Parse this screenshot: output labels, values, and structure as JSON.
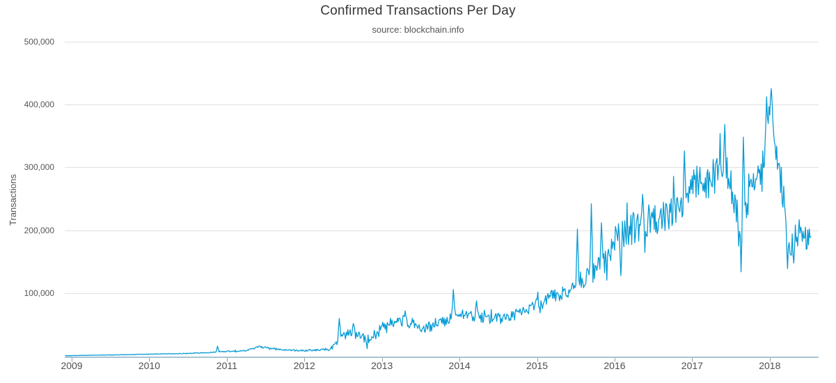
{
  "chart_data": {
    "type": "line",
    "title": "Confirmed Transactions Per Day",
    "subtitle": "source: blockchain.info",
    "ylabel": "Transactions",
    "xlabel": "",
    "series_name": "confirmed-transactions-per-day",
    "legend": "none",
    "grid": "horizontal-only",
    "background_color": "#ffffff",
    "line_color": "#069bd5",
    "grid_color": "#e0e0e0",
    "axis_line_color": "#a8c3d3",
    "tick_mark_color": "#8fa3af",
    "label_color": "#555555",
    "title_color": "#363636",
    "xlim": [
      2008.91,
      2018.63
    ],
    "ylim": [
      0,
      500000
    ],
    "x_start": 2009.0,
    "x_end": 2018.53,
    "x_ticks": [
      {
        "value": 2009,
        "label": "2009"
      },
      {
        "value": 2010,
        "label": "2010"
      },
      {
        "value": 2011,
        "label": "2011"
      },
      {
        "value": 2012,
        "label": "2012"
      },
      {
        "value": 2013,
        "label": "2013"
      },
      {
        "value": 2014,
        "label": "2014"
      },
      {
        "value": 2015,
        "label": "2015"
      },
      {
        "value": 2016,
        "label": "2016"
      },
      {
        "value": 2017,
        "label": "2017"
      },
      {
        "value": 2018,
        "label": "2018"
      }
    ],
    "y_ticks": [
      {
        "value": 100000,
        "label": "100,000"
      },
      {
        "value": 200000,
        "label": "200,000"
      },
      {
        "value": 300000,
        "label": "300,000"
      },
      {
        "value": 400000,
        "label": "400,000"
      },
      {
        "value": 500000,
        "label": "500,000"
      }
    ],
    "baseline": [
      [
        2009.0,
        1000
      ],
      [
        2009.4,
        1800
      ],
      [
        2009.8,
        2600
      ],
      [
        2010.0,
        3200
      ],
      [
        2010.4,
        4200
      ],
      [
        2010.75,
        5500
      ],
      [
        2011.0,
        7500
      ],
      [
        2011.25,
        8800
      ],
      [
        2011.42,
        15000
      ],
      [
        2011.52,
        13000
      ],
      [
        2011.7,
        10200
      ],
      [
        2011.9,
        9000
      ],
      [
        2012.1,
        9500
      ],
      [
        2012.3,
        10500
      ],
      [
        2012.36,
        14000
      ],
      [
        2012.44,
        30000
      ],
      [
        2012.55,
        35000
      ],
      [
        2012.65,
        37000
      ],
      [
        2012.75,
        30000
      ],
      [
        2012.82,
        27000
      ],
      [
        2012.92,
        34000
      ],
      [
        2013.0,
        45000
      ],
      [
        2013.1,
        54000
      ],
      [
        2013.25,
        58000
      ],
      [
        2013.4,
        52000
      ],
      [
        2013.5,
        42000
      ],
      [
        2013.6,
        46000
      ],
      [
        2013.72,
        52000
      ],
      [
        2013.85,
        58000
      ],
      [
        2013.95,
        68000
      ],
      [
        2014.05,
        66000
      ],
      [
        2014.2,
        63000
      ],
      [
        2014.4,
        60000
      ],
      [
        2014.6,
        63000
      ],
      [
        2014.75,
        67000
      ],
      [
        2014.9,
        76000
      ],
      [
        2015.0,
        86000
      ],
      [
        2015.15,
        93000
      ],
      [
        2015.3,
        98000
      ],
      [
        2015.45,
        110000
      ],
      [
        2015.6,
        122000
      ],
      [
        2015.75,
        135000
      ],
      [
        2015.9,
        150000
      ],
      [
        2016.0,
        190000
      ],
      [
        2016.15,
        200000
      ],
      [
        2016.3,
        205000
      ],
      [
        2016.45,
        215000
      ],
      [
        2016.6,
        222000
      ],
      [
        2016.75,
        232000
      ],
      [
        2016.9,
        255000
      ],
      [
        2017.0,
        265000
      ],
      [
        2017.15,
        278000
      ],
      [
        2017.3,
        292000
      ],
      [
        2017.4,
        318000
      ],
      [
        2017.48,
        290000
      ],
      [
        2017.56,
        245000
      ],
      [
        2017.64,
        228000
      ],
      [
        2017.72,
        245000
      ],
      [
        2017.82,
        272000
      ],
      [
        2017.9,
        300000
      ],
      [
        2017.95,
        340000
      ],
      [
        2018.0,
        398000
      ],
      [
        2018.04,
        390000
      ],
      [
        2018.08,
        330000
      ],
      [
        2018.13,
        290000
      ],
      [
        2018.18,
        245000
      ],
      [
        2018.24,
        195000
      ],
      [
        2018.3,
        180000
      ],
      [
        2018.36,
        195000
      ],
      [
        2018.42,
        200000
      ],
      [
        2018.48,
        190000
      ],
      [
        2018.53,
        195000
      ]
    ],
    "spikes": [
      [
        2010.88,
        16000
      ],
      [
        2012.45,
        60000
      ],
      [
        2012.63,
        52000
      ],
      [
        2013.3,
        72000
      ],
      [
        2013.92,
        106000
      ],
      [
        2014.22,
        88000
      ],
      [
        2015.52,
        202000
      ],
      [
        2015.7,
        242000
      ],
      [
        2015.83,
        212000
      ],
      [
        2016.08,
        128000
      ],
      [
        2016.36,
        257000
      ],
      [
        2016.9,
        326000
      ],
      [
        2017.42,
        368000
      ],
      [
        2017.6,
        175000
      ],
      [
        2017.63,
        134000
      ],
      [
        2017.66,
        348000
      ],
      [
        2017.96,
        412000
      ],
      [
        2018.02,
        425000
      ],
      [
        2018.23,
        139000
      ],
      [
        2018.31,
        148000
      ]
    ],
    "noise_amplitude": [
      [
        2009.0,
        150
      ],
      [
        2010.0,
        350
      ],
      [
        2010.8,
        700
      ],
      [
        2011.3,
        1200
      ],
      [
        2011.6,
        1500
      ],
      [
        2012.2,
        1500
      ],
      [
        2012.4,
        4000
      ],
      [
        2012.55,
        8000
      ],
      [
        2013.0,
        9000
      ],
      [
        2013.5,
        8000
      ],
      [
        2014.0,
        9000
      ],
      [
        2014.6,
        8000
      ],
      [
        2015.0,
        10000
      ],
      [
        2015.5,
        13000
      ],
      [
        2015.9,
        20000
      ],
      [
        2016.2,
        26000
      ],
      [
        2016.6,
        27000
      ],
      [
        2016.9,
        30000
      ],
      [
        2017.1,
        33000
      ],
      [
        2017.45,
        34000
      ],
      [
        2017.6,
        30000
      ],
      [
        2017.8,
        30000
      ],
      [
        2017.93,
        24000
      ],
      [
        2018.0,
        16000
      ],
      [
        2018.06,
        25000
      ],
      [
        2018.15,
        30000
      ],
      [
        2018.3,
        26000
      ],
      [
        2018.53,
        23000
      ]
    ]
  }
}
